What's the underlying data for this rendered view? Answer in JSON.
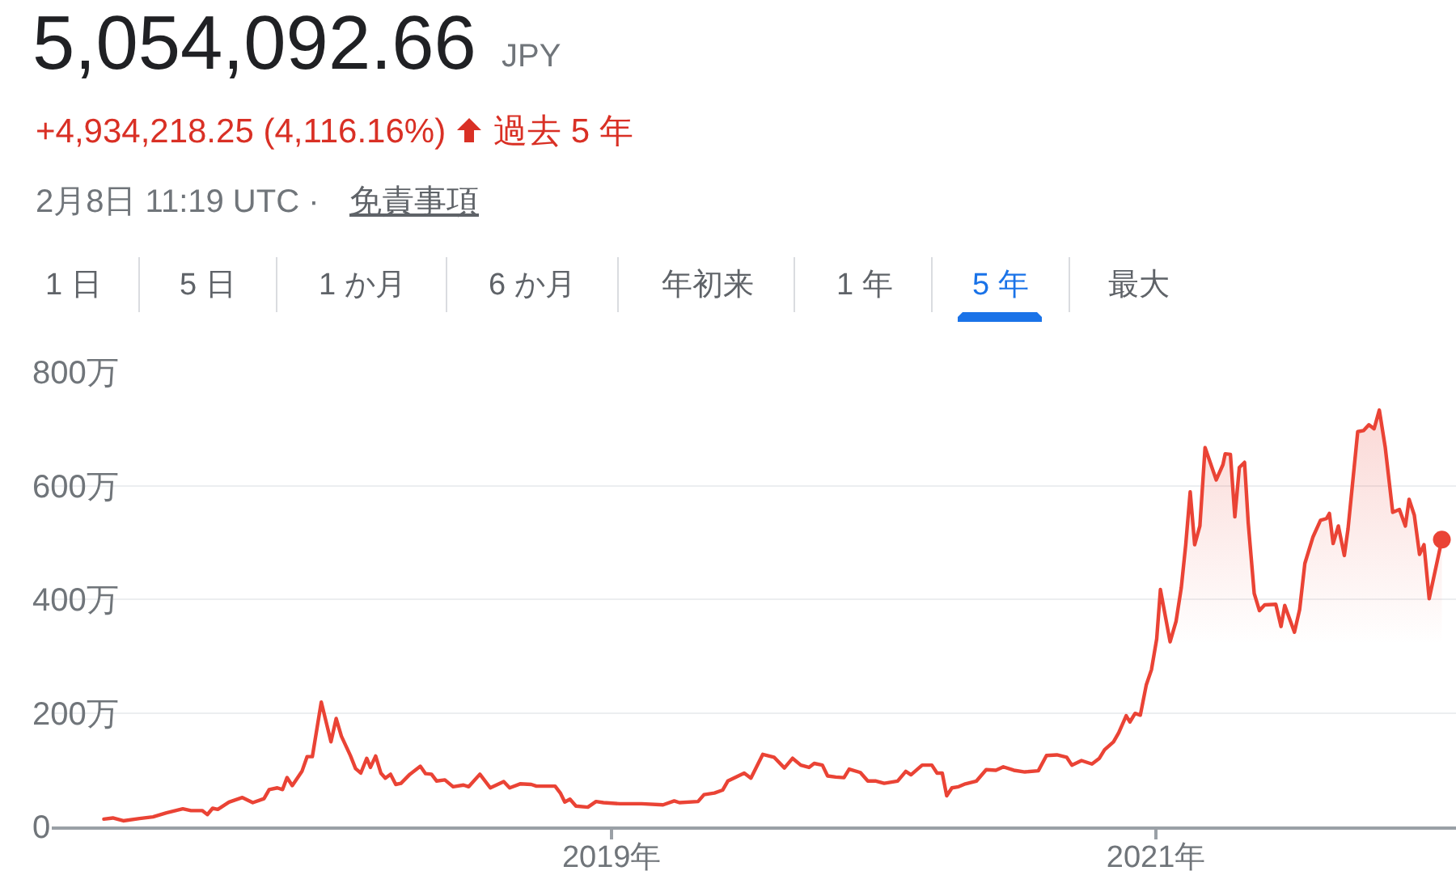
{
  "chart_data": {
    "type": "area",
    "title": "5,054,092.66",
    "subtitle": "2月8日 11:19 UTC ·",
    "annotations": [
      "JPY",
      "+4,934,218.25 (4,116.16%)",
      "過去 5 年",
      "免責事項",
      "1 日",
      "5 日",
      "1 か月",
      "6 か月",
      "年初来",
      "1 年",
      "5 年",
      "最大"
    ],
    "x": [
      "2017-02-18",
      "2017-03-02",
      "2017-03-16",
      "2017-04-07",
      "2017-04-25",
      "2017-05-13",
      "2017-06-04",
      "2017-06-15",
      "2017-06-30",
      "2017-07-07",
      "2017-07-14",
      "2017-07-21",
      "2017-08-05",
      "2017-08-23",
      "2017-09-06",
      "2017-09-21",
      "2017-09-28",
      "2017-10-09",
      "2017-10-16",
      "2017-10-22",
      "2017-10-29",
      "2017-11-11",
      "2017-11-18",
      "2017-11-25",
      "2017-12-07",
      "2017-12-20",
      "2017-12-27",
      "2018-01-03",
      "2018-01-15",
      "2018-01-22",
      "2018-01-29",
      "2018-02-06",
      "2018-02-11",
      "2018-02-18",
      "2018-02-25",
      "2018-03-03",
      "2018-03-10",
      "2018-03-17",
      "2018-03-24",
      "2018-04-05",
      "2018-04-19",
      "2018-04-26",
      "2018-05-04",
      "2018-05-11",
      "2018-05-22",
      "2018-06-02",
      "2018-06-16",
      "2018-06-23",
      "2018-07-08",
      "2018-07-22",
      "2018-08-09",
      "2018-08-17",
      "2018-08-31",
      "2018-09-15",
      "2018-09-22",
      "2018-10-17",
      "2018-10-24",
      "2018-10-30",
      "2018-11-06",
      "2018-11-14",
      "2018-11-30",
      "2018-12-11",
      "2018-12-21",
      "2019-01-12",
      "2019-02-10",
      "2019-03-11",
      "2019-03-26",
      "2019-04-02",
      "2019-04-27",
      "2019-05-05",
      "2019-05-19",
      "2019-05-30",
      "2019-06-06",
      "2019-06-28",
      "2019-07-07",
      "2019-07-23",
      "2019-08-07",
      "2019-08-21",
      "2019-09-01",
      "2019-09-12",
      "2019-09-23",
      "2019-09-30",
      "2019-10-11",
      "2019-10-18",
      "2019-10-29",
      "2019-11-09",
      "2019-11-16",
      "2019-12-01",
      "2019-12-11",
      "2019-12-22",
      "2020-01-02",
      "2020-01-20",
      "2020-01-31",
      "2020-02-07",
      "2020-02-22",
      "2020-03-06",
      "2020-03-13",
      "2020-03-20",
      "2020-03-26",
      "2020-04-02",
      "2020-04-11",
      "2020-04-20",
      "2020-05-05",
      "2020-05-18",
      "2020-05-31",
      "2020-06-10",
      "2020-06-24",
      "2020-07-09",
      "2020-07-27",
      "2020-08-07",
      "2020-08-21",
      "2020-09-03",
      "2020-09-10",
      "2020-09-23",
      "2020-10-07",
      "2020-10-17",
      "2020-10-24",
      "2020-11-05",
      "2020-11-12",
      "2020-11-22",
      "2020-11-27",
      "2020-12-04",
      "2020-12-11",
      "2020-12-19",
      "2020-12-26",
      "2021-01-02",
      "2021-01-07",
      "2021-01-20",
      "2021-01-28",
      "2021-02-04",
      "2021-02-10",
      "2021-02-16",
      "2021-02-22",
      "2021-03-01",
      "2021-03-08",
      "2021-03-23",
      "2021-04-01",
      "2021-04-04",
      "2021-04-11",
      "2021-04-17",
      "2021-04-23",
      "2021-04-30",
      "2021-05-05",
      "2021-05-13",
      "2021-05-20",
      "2021-05-27",
      "2021-06-11",
      "2021-06-18",
      "2021-06-23",
      "2021-07-06",
      "2021-07-13",
      "2021-07-20",
      "2021-07-31",
      "2021-08-10",
      "2021-08-18",
      "2021-08-22",
      "2021-08-27",
      "2021-09-03",
      "2021-09-11",
      "2021-09-16",
      "2021-09-29",
      "2021-10-07",
      "2021-10-14",
      "2021-10-21",
      "2021-10-28",
      "2021-11-05",
      "2021-11-15",
      "2021-11-24",
      "2021-12-02",
      "2021-12-07",
      "2021-12-14",
      "2021-12-21",
      "2021-12-27",
      "2022-01-03",
      "2022-01-20"
    ],
    "series": [
      {
        "color": "#ea4335",
        "values": [
          13,
          15,
          10,
          14,
          17,
          24,
          31,
          28,
          28,
          21,
          32,
          30,
          43,
          51,
          42,
          49,
          65,
          68,
          65,
          86,
          72,
          97,
          123,
          123,
          219,
          149,
          190,
          159,
          125,
          102,
          94,
          120,
          104,
          124,
          94,
          85,
          92,
          74,
          76,
          92,
          106,
          93,
          92,
          80,
          82,
          70,
          73,
          70,
          92,
          68,
          79,
          68,
          75,
          74,
          71,
          71,
          59,
          43,
          48,
          36,
          34,
          44,
          42,
          40,
          40,
          38,
          45,
          42,
          44,
          56,
          59,
          64,
          80,
          94,
          85,
          127,
          122,
          103,
          120,
          108,
          104,
          111,
          108,
          89,
          87,
          86,
          101,
          95,
          80,
          80,
          76,
          80,
          97,
          91,
          108,
          108,
          94,
          94,
          54,
          68,
          70,
          75,
          80,
          100,
          99,
          105,
          99,
          96,
          98,
          125,
          126,
          122,
          108,
          116,
          110,
          120,
          135,
          149,
          165,
          195,
          184,
          199,
          196,
          249,
          276,
          330,
          417,
          325,
          361,
          420,
          496,
          589,
          496,
          529,
          667,
          610,
          637,
          656,
          655,
          545,
          632,
          641,
          534,
          410,
          380,
          390,
          391,
          352,
          389,
          342,
          382,
          463,
          510,
          539,
          542,
          551,
          498,
          529,
          477,
          524,
          695,
          697,
          707,
          700,
          733,
          667,
          553,
          558,
          529,
          576,
          548,
          479,
          496,
          401,
          505
        ]
      },
      {
        "type": "scatter",
        "color": "#ea4335",
        "x": [
          "2022-01-20"
        ],
        "values": [
          505
        ]
      }
    ],
    "xlim": [
      "2016-12-10",
      "2022-02-08"
    ],
    "xticks": [
      {
        "value": "2019-01-01",
        "label": "2019年"
      },
      {
        "value": "2021-01-01",
        "label": "2021年"
      }
    ],
    "ylim": [
      0,
      800
    ],
    "yticks": [
      0,
      {
        "value": 200,
        "label": "200万"
      },
      {
        "value": 400,
        "label": "400万"
      },
      {
        "value": 600,
        "label": "600万"
      },
      {
        "value": 800,
        "label": "800万"
      }
    ],
    "grid": "y"
  }
}
